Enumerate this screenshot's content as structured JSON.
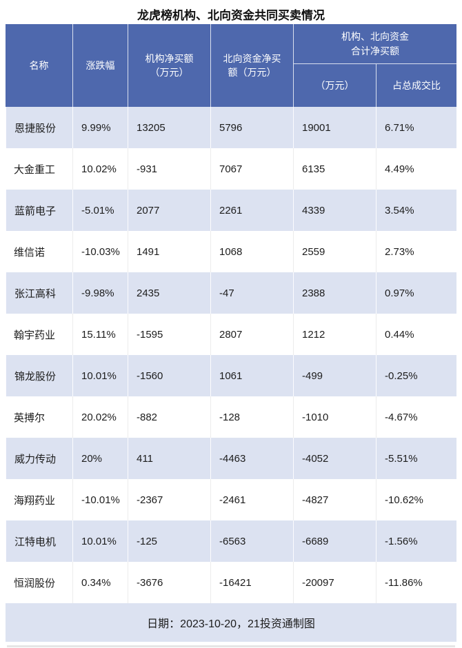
{
  "title": "龙虎榜机构、北向资金共同买卖情况",
  "colors": {
    "header_bg": "#4e68ad",
    "header_text": "#ffffff",
    "row_alt_bg": "#dce2f1",
    "footer_bg": "#dce2f1",
    "body_text": "#1c1c1c"
  },
  "header": {
    "name": "名称",
    "change": "涨跌幅",
    "inst_net": "机构净买额\n（万元）",
    "north_net": "北向资金净买\n额（万元）",
    "combined_group": "机构、北向资金\n合计净买额",
    "combined_amount": "（万元）",
    "combined_ratio": "占总成交比"
  },
  "footer": {
    "note": "日期：2023-10-20，21投资通制图"
  },
  "chart_data": {
    "type": "table",
    "title": "龙虎榜机构、北向资金共同买卖情况",
    "columns": [
      "名称",
      "涨跌幅",
      "机构净买额（万元）",
      "北向资金净买额（万元）",
      "机构、北向资金合计净买额（万元）",
      "机构、北向资金合计净买额占总成交比"
    ],
    "rows": [
      [
        "恩捷股份",
        "9.99%",
        "13205",
        "5796",
        "19001",
        "6.71%"
      ],
      [
        "大金重工",
        "10.02%",
        "-931",
        "7067",
        "6135",
        "4.49%"
      ],
      [
        "蓝箭电子",
        "-5.01%",
        "2077",
        "2261",
        "4339",
        "3.54%"
      ],
      [
        "维信诺",
        "-10.03%",
        "1491",
        "1068",
        "2559",
        "2.73%"
      ],
      [
        "张江高科",
        "-9.98%",
        "2435",
        "-47",
        "2388",
        "0.97%"
      ],
      [
        "翰宇药业",
        "15.11%",
        "-1595",
        "2807",
        "1212",
        "0.44%"
      ],
      [
        "锦龙股份",
        "10.01%",
        "-1560",
        "1061",
        "-499",
        "-0.25%"
      ],
      [
        "英搏尔",
        "20.02%",
        "-882",
        "-128",
        "-1010",
        "-4.67%"
      ],
      [
        "威力传动",
        "20%",
        "411",
        "-4463",
        "-4052",
        "-5.51%"
      ],
      [
        "海翔药业",
        "-10.01%",
        "-2367",
        "-2461",
        "-4827",
        "-10.62%"
      ],
      [
        "江特电机",
        "10.01%",
        "-125",
        "-6563",
        "-6689",
        "-1.56%"
      ],
      [
        "恒润股份",
        "0.34%",
        "-3676",
        "-16421",
        "-20097",
        "-11.86%"
      ]
    ]
  }
}
